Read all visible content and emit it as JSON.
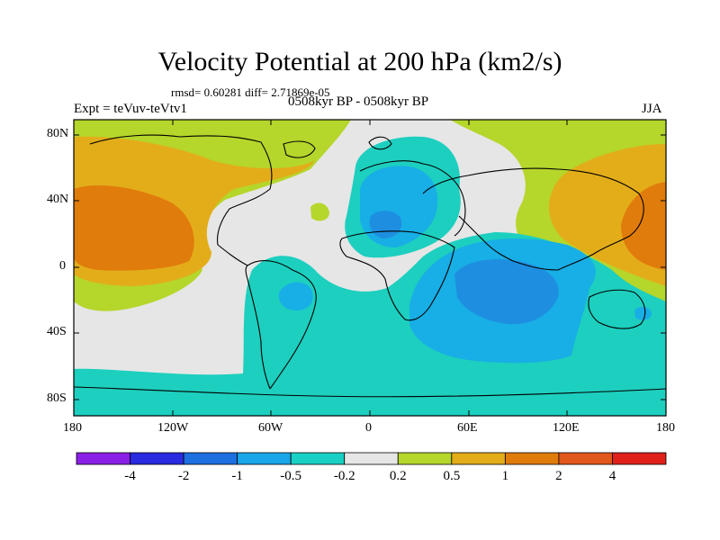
{
  "header": {
    "title": "Velocity Potential at 200 hPa (km2/s)",
    "stats": "rmsd= 0.60281 diff= 2.71869e-05",
    "experiment": "Expt = teVuv-teVtv1",
    "period": "0508kyr BP - 0508kyr BP",
    "season": "JJA"
  },
  "map": {
    "lat_ticks": [
      "80N",
      "40N",
      "0",
      "40S",
      "80S"
    ],
    "lon_ticks": [
      "180",
      "120W",
      "60W",
      "0",
      "60E",
      "120E",
      "180"
    ],
    "colors": {
      "neutral": "#e6e6e6",
      "pos_0_2": "#b5d62b",
      "pos_0_5": "#e3ad1a",
      "pos_1": "#e07c0b",
      "neg_0_2": "#1dcfbf",
      "neg_0_5": "#18aee6",
      "neg_1": "#1e8fe0",
      "neg_2": "#1f6fd9"
    }
  },
  "colorbar": {
    "colors": [
      "#8a1fe6",
      "#2a2ae0",
      "#1e6fe0",
      "#1aa6e8",
      "#1ad0c4",
      "#e6e6e6",
      "#b5d62b",
      "#e3ad1a",
      "#e07c0b",
      "#e0581b",
      "#e0201b"
    ],
    "labels": [
      "-4",
      "-2",
      "-1",
      "-0.5",
      "-0.2",
      "0.2",
      "0.5",
      "1",
      "2",
      "4"
    ]
  }
}
